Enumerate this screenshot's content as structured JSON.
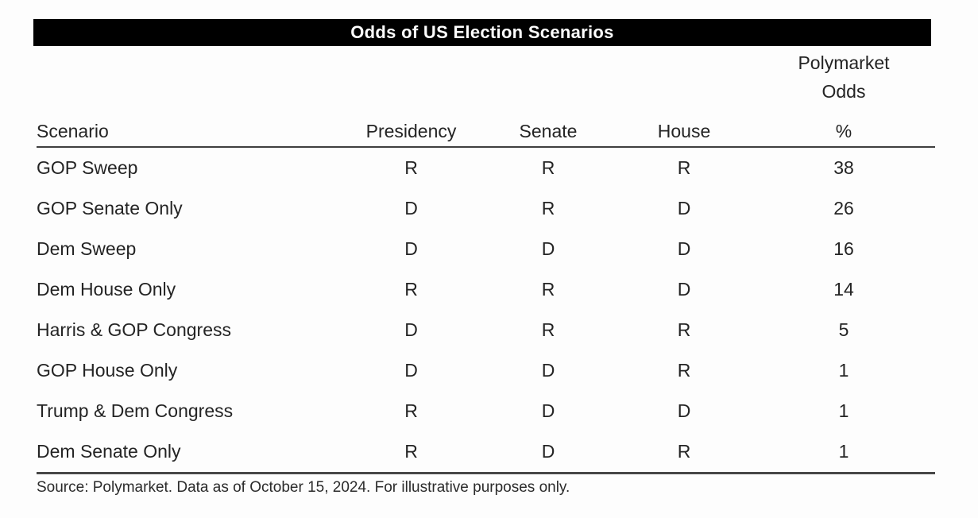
{
  "title": "Odds of US Election Scenarios",
  "odds_superheader": {
    "line1": "Polymarket",
    "line2": "Odds"
  },
  "source_note": "Source: Polymarket. Data as of October 15, 2024. For illustrative purposes only.",
  "colors": {
    "title_bar_bg": "#000000",
    "title_text": "#ffffff",
    "body_text": "#242424",
    "rule": "#3f3f3f",
    "background": "#fdfdfd"
  },
  "chart_data": {
    "type": "table",
    "title": "Odds of US Election Scenarios",
    "superheader": "Polymarket Odds",
    "columns": [
      "Scenario",
      "Presidency",
      "Senate",
      "House",
      "%"
    ],
    "rows": [
      [
        "GOP Sweep",
        "R",
        "R",
        "R",
        38
      ],
      [
        "GOP Senate Only",
        "D",
        "R",
        "D",
        26
      ],
      [
        "Dem Sweep",
        "D",
        "D",
        "D",
        16
      ],
      [
        "Dem House Only",
        "R",
        "R",
        "D",
        14
      ],
      [
        "Harris & GOP Congress",
        "D",
        "R",
        "R",
        5
      ],
      [
        "GOP House Only",
        "D",
        "D",
        "R",
        1
      ],
      [
        "Trump & Dem Congress",
        "R",
        "D",
        "D",
        1
      ],
      [
        "Dem Senate Only",
        "R",
        "D",
        "R",
        1
      ]
    ],
    "source": "Source: Polymarket. Data as of October 15, 2024. For illustrative purposes only."
  }
}
